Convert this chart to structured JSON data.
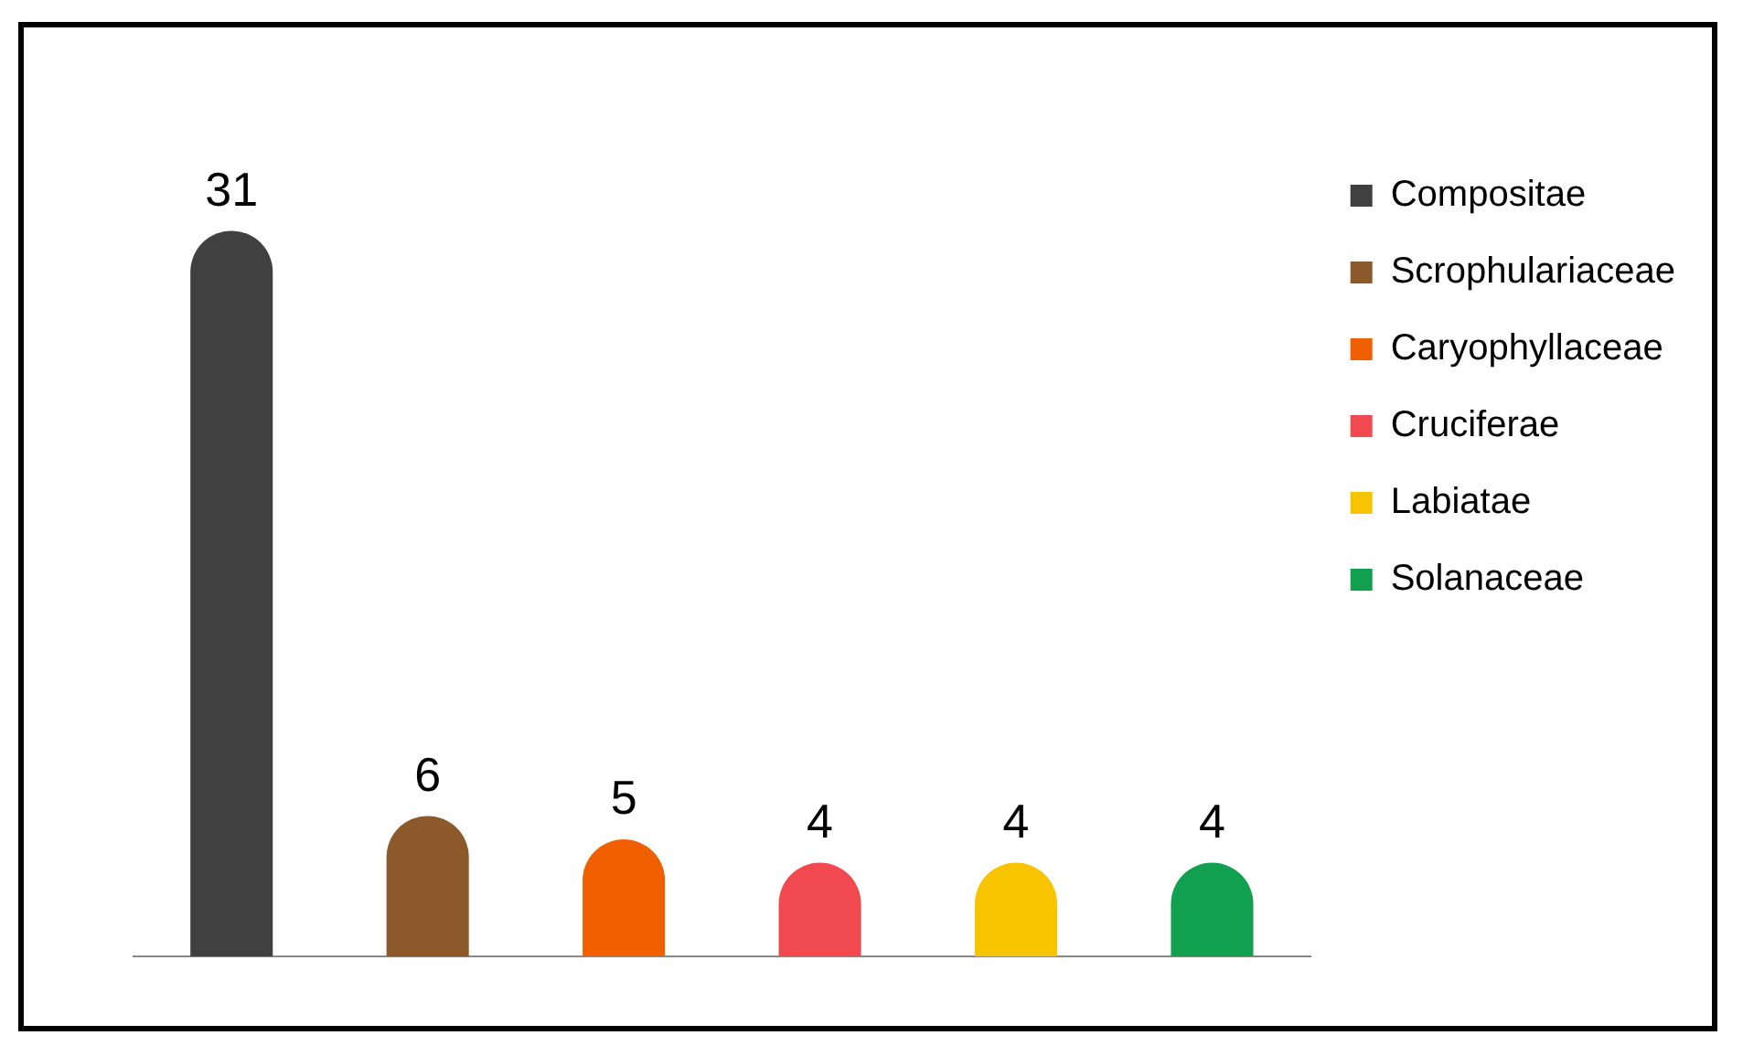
{
  "chart_data": {
    "type": "bar",
    "categories": [
      null,
      null,
      null,
      null,
      null,
      null
    ],
    "series": [
      {
        "name": "Compositae",
        "color": "#404040",
        "values": [
          31,
          null,
          null,
          null,
          null,
          null
        ]
      },
      {
        "name": "Scrophulariaceae",
        "color": "#8c5a2a",
        "values": [
          null,
          6,
          null,
          null,
          null,
          null
        ]
      },
      {
        "name": "Caryophyllaceae",
        "color": "#f06000",
        "values": [
          null,
          null,
          5,
          null,
          null,
          null
        ]
      },
      {
        "name": "Cruciferae",
        "color": "#f04a50",
        "values": [
          null,
          null,
          null,
          4,
          null,
          null
        ]
      },
      {
        "name": "Labiatae",
        "color": "#f8c400",
        "values": [
          null,
          null,
          null,
          null,
          4,
          null
        ]
      },
      {
        "name": "Solanaceae",
        "color": "#10a050",
        "values": [
          null,
          null,
          null,
          null,
          null,
          4
        ]
      }
    ],
    "stacked": true,
    "data_labels": true,
    "legend": "top right",
    "grid": false
  }
}
